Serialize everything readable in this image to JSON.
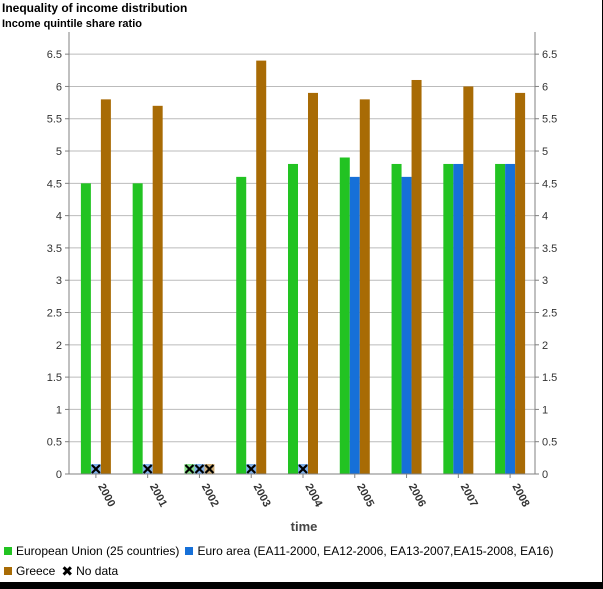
{
  "header": {
    "title": "Inequality of income distribution",
    "subtitle": "Income quintile share ratio"
  },
  "legend": {
    "nodata_label": "No data"
  },
  "colors": {
    "eu25": "#22c322",
    "ea": "#1670d8",
    "greece": "#a86b05",
    "grid": "#bbbbbb",
    "axis": "#808080"
  },
  "chart_data": {
    "type": "bar",
    "title": "Inequality of income distribution",
    "subtitle": "Income quintile share ratio",
    "xlabel": "time",
    "ylabel": "",
    "ylim": [
      0,
      6.75
    ],
    "yticks": [
      "0",
      "0.5",
      "1",
      "1.5",
      "2",
      "2.5",
      "3",
      "3.5",
      "4",
      "4.5",
      "5",
      "5.5",
      "6",
      "6.5"
    ],
    "categories": [
      "2000",
      "2001",
      "2002",
      "2003",
      "2004",
      "2005",
      "2006",
      "2007",
      "2008"
    ],
    "series": [
      {
        "name": "European Union (25 countries)",
        "color": "#22c322",
        "values": [
          4.5,
          4.5,
          null,
          4.6,
          4.8,
          4.9,
          4.8,
          4.8,
          4.8
        ]
      },
      {
        "name": "Euro area (EA11-2000, EA12-2006, EA13-2007,EA15-2008, EA16)",
        "color": "#1670d8",
        "values": [
          null,
          null,
          null,
          null,
          null,
          4.6,
          4.6,
          4.8,
          4.8
        ]
      },
      {
        "name": "Greece",
        "color": "#a86b05",
        "values": [
          5.8,
          5.7,
          null,
          6.4,
          5.9,
          5.8,
          6.1,
          6.0,
          5.9
        ]
      }
    ],
    "grid": true,
    "legend_position": "bottom",
    "secondary_y_axis": "mirrored"
  }
}
